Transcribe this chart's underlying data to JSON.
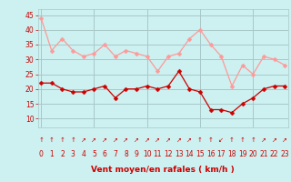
{
  "hours": [
    0,
    1,
    2,
    3,
    4,
    5,
    6,
    7,
    8,
    9,
    10,
    11,
    12,
    13,
    14,
    15,
    16,
    17,
    18,
    19,
    20,
    21,
    22,
    23
  ],
  "wind_avg": [
    22,
    22,
    20,
    19,
    19,
    20,
    21,
    17,
    20,
    20,
    21,
    20,
    21,
    26,
    20,
    19,
    13,
    13,
    12,
    15,
    17,
    20,
    21,
    21
  ],
  "wind_gust": [
    44,
    33,
    37,
    33,
    31,
    32,
    35,
    31,
    33,
    32,
    31,
    26,
    31,
    32,
    37,
    40,
    35,
    31,
    21,
    28,
    25,
    31,
    30,
    28
  ],
  "bg_color": "#cdf0f0",
  "grid_color": "#a8c8c8",
  "avg_color": "#cc0000",
  "gust_color": "#ff9999",
  "marker_size": 2.5,
  "xlabel": "Vent moyen/en rafales ( km/h )",
  "tick_color": "#cc0000",
  "yticks": [
    10,
    15,
    20,
    25,
    30,
    35,
    40,
    45
  ],
  "ylim": [
    7,
    47
  ],
  "xlim": [
    -0.3,
    23.3
  ],
  "arrow_chars": [
    "↑",
    "↑",
    "↑",
    "↑",
    "↗",
    "↗",
    "↗",
    "↗",
    "↗",
    "↗",
    "↗",
    "↗",
    "↗",
    "↗",
    "↗",
    "↑",
    "↑",
    "↙",
    "↑",
    "↑",
    "↑",
    "↗",
    "↗",
    "↗"
  ]
}
